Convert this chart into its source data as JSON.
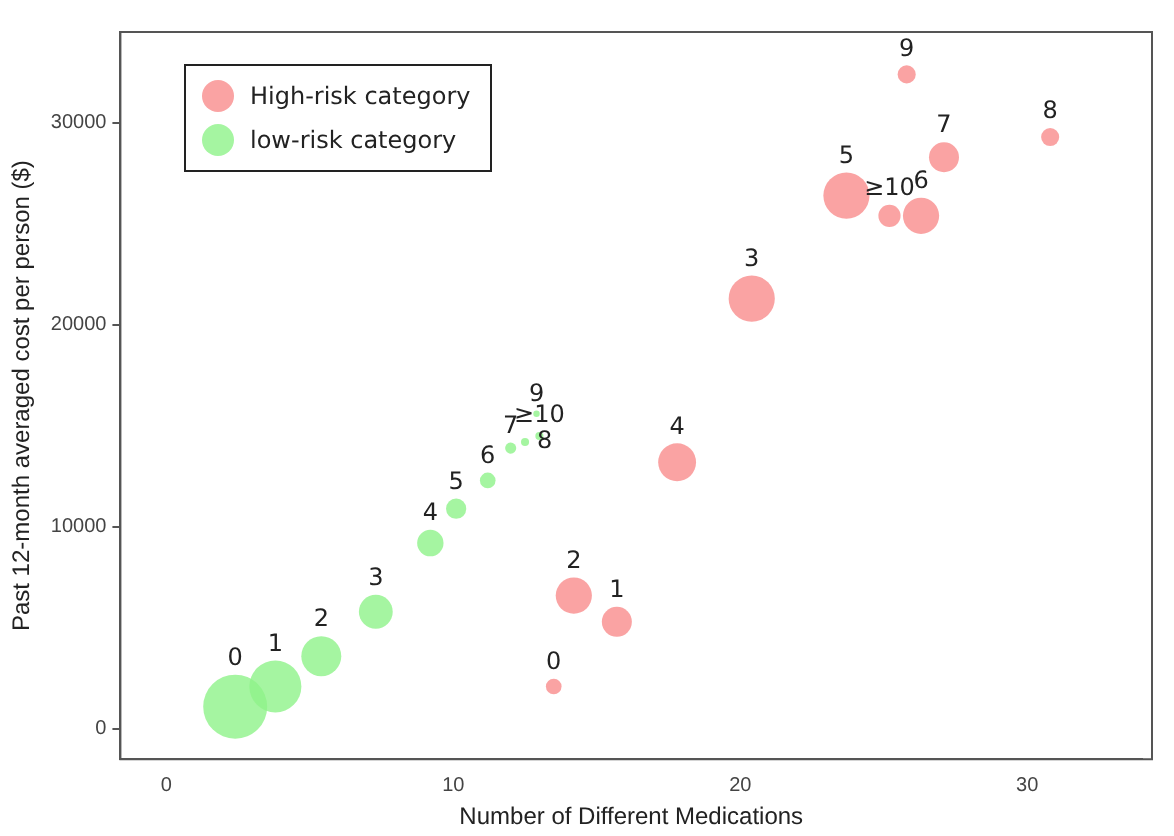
{
  "chart_data": {
    "type": "bubble",
    "xlabel": "Number of Different Medications",
    "ylabel": "Past 12-month averaged cost per person ($)",
    "xlim": [
      -1.6,
      34
    ],
    "xticks": [
      0,
      10,
      20,
      30
    ],
    "ylim": [
      -1500,
      34500
    ],
    "yticks": [
      0,
      10000,
      20000,
      30000
    ],
    "grid": false,
    "legend": "top left",
    "series": [
      {
        "name": "High-risk category",
        "color": "#f98c8c",
        "x": [
          13.5,
          15.7,
          14.2,
          20.4,
          17.8,
          23.7,
          26.3,
          27.1,
          30.8,
          25.8,
          25.2
        ],
        "values": [
          2100,
          5300,
          6600,
          21300,
          13200,
          26400,
          25400,
          28300,
          29300,
          32400,
          25400
        ],
        "sizes": [
          0.06,
          0.22,
          0.32,
          0.52,
          0.35,
          0.52,
          0.32,
          0.22,
          0.08,
          0.08,
          0.12
        ]
      },
      {
        "name": "low-risk category",
        "color": "#8ef28a",
        "x": [
          2.4,
          3.8,
          5.4,
          7.3,
          9.2,
          10.1,
          11.2,
          12.0,
          12.5,
          12.9,
          13.0
        ],
        "values": [
          1100,
          2100,
          3600,
          5800,
          9200,
          10900,
          12300,
          13900,
          14200,
          15600,
          14500
        ],
        "sizes": [
          1,
          0.66,
          0.39,
          0.28,
          0.17,
          0.1,
          0.06,
          0.03,
          0.016,
          0.01,
          0.016
        ]
      }
    ],
    "annotations": [
      {
        "text": "0",
        "x": 13.5,
        "y": 2100
      },
      {
        "text": "1",
        "x": 15.7,
        "y": 5300
      },
      {
        "text": "2",
        "x": 14.2,
        "y": 6600
      },
      {
        "text": "3",
        "x": 20.4,
        "y": 21300
      },
      {
        "text": "4",
        "x": 17.8,
        "y": 13200
      },
      {
        "text": "5",
        "x": 23.7,
        "y": 26400
      },
      {
        "text": "6",
        "x": 26.3,
        "y": 25400
      },
      {
        "text": "7",
        "x": 27.1,
        "y": 28300
      },
      {
        "text": "8",
        "x": 30.8,
        "y": 29300
      },
      {
        "text": "9",
        "x": 25.8,
        "y": 32400
      },
      {
        "text": "≥10",
        "x": 25.2,
        "y": 25400
      },
      {
        "text": "0",
        "x": 2.4,
        "y": 1100
      },
      {
        "text": "1",
        "x": 3.8,
        "y": 2100
      },
      {
        "text": "2",
        "x": 5.4,
        "y": 3600
      },
      {
        "text": "3",
        "x": 7.3,
        "y": 5800
      },
      {
        "text": "4",
        "x": 9.2,
        "y": 9200
      },
      {
        "text": "5",
        "x": 10.1,
        "y": 10900
      },
      {
        "text": "6",
        "x": 11.2,
        "y": 12300
      },
      {
        "text": "7",
        "x": 12.0,
        "y": 13900
      },
      {
        "text": "8",
        "x": 12.5,
        "y": 14200
      },
      {
        "text": "9",
        "x": 12.9,
        "y": 15600
      },
      {
        "text": "≥10",
        "x": 13.0,
        "y": 14500
      }
    ]
  }
}
